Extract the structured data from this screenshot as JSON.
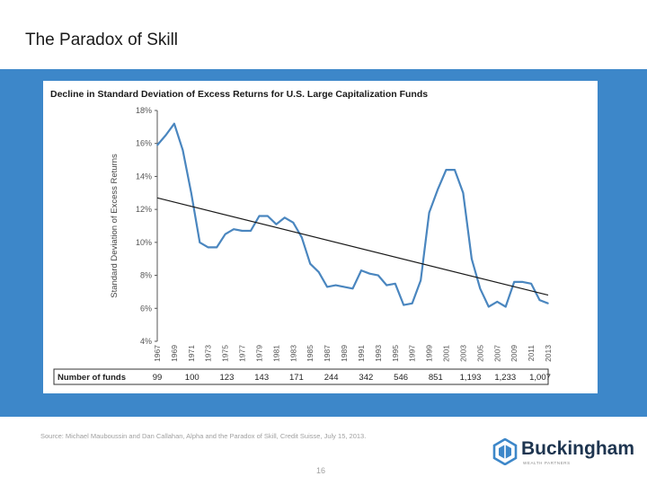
{
  "slide": {
    "title": "The Paradox of Skill",
    "source": "Source: Michael Mauboussin and Dan Callahan, Alpha and the Paradox of Skill, Credit Suisse, July 15, 2013.",
    "page_number": "16"
  },
  "logo": {
    "name": "Buckingham",
    "tagline": "WEALTH PARTNERS"
  },
  "colors": {
    "band": "#3d87c9",
    "series": "#4a86bf",
    "trend": "#1a1a1a"
  },
  "chart_data": {
    "type": "line",
    "title": "Decline in Standard Deviation of Excess Returns for U.S. Large Capitalization Funds",
    "ylabel": "Standard Deviation of Excess Returns",
    "xlabel": "",
    "ylim": [
      4,
      18
    ],
    "yticks": [
      "18%",
      "16%",
      "14%",
      "12%",
      "10%",
      "8%",
      "6%",
      "4%"
    ],
    "xticks": [
      "1967",
      "1969",
      "1971",
      "1973",
      "1975",
      "1977",
      "1979",
      "1981",
      "1983",
      "1985",
      "1987",
      "1989",
      "1991",
      "1993",
      "1995",
      "1997",
      "1999",
      "2001",
      "2003",
      "2005",
      "2007",
      "2009",
      "2011",
      "2013"
    ],
    "series": [
      {
        "values": [
          {
            "x": 1967,
            "y": 15.9
          },
          {
            "x": 1968,
            "y": 16.5
          },
          {
            "x": 1969,
            "y": 17.2
          },
          {
            "x": 1970,
            "y": 15.6
          },
          {
            "x": 1971,
            "y": 13.0
          },
          {
            "x": 1972,
            "y": 10.0
          },
          {
            "x": 1973,
            "y": 9.7
          },
          {
            "x": 1974,
            "y": 9.7
          },
          {
            "x": 1975,
            "y": 10.5
          },
          {
            "x": 1976,
            "y": 10.8
          },
          {
            "x": 1977,
            "y": 10.7
          },
          {
            "x": 1978,
            "y": 10.7
          },
          {
            "x": 1979,
            "y": 11.6
          },
          {
            "x": 1980,
            "y": 11.6
          },
          {
            "x": 1981,
            "y": 11.1
          },
          {
            "x": 1982,
            "y": 11.5
          },
          {
            "x": 1983,
            "y": 11.2
          },
          {
            "x": 1984,
            "y": 10.3
          },
          {
            "x": 1985,
            "y": 8.7
          },
          {
            "x": 1986,
            "y": 8.2
          },
          {
            "x": 1987,
            "y": 7.3
          },
          {
            "x": 1988,
            "y": 7.4
          },
          {
            "x": 1989,
            "y": 7.3
          },
          {
            "x": 1990,
            "y": 7.2
          },
          {
            "x": 1991,
            "y": 8.3
          },
          {
            "x": 1992,
            "y": 8.1
          },
          {
            "x": 1993,
            "y": 8.0
          },
          {
            "x": 1994,
            "y": 7.4
          },
          {
            "x": 1995,
            "y": 7.5
          },
          {
            "x": 1996,
            "y": 6.2
          },
          {
            "x": 1997,
            "y": 6.3
          },
          {
            "x": 1998,
            "y": 7.7
          },
          {
            "x": 1999,
            "y": 11.8
          },
          {
            "x": 2000,
            "y": 13.2
          },
          {
            "x": 2001,
            "y": 14.4
          },
          {
            "x": 2002,
            "y": 14.4
          },
          {
            "x": 2003,
            "y": 13.0
          },
          {
            "x": 2004,
            "y": 9.0
          },
          {
            "x": 2005,
            "y": 7.2
          },
          {
            "x": 2006,
            "y": 6.1
          },
          {
            "x": 2007,
            "y": 6.4
          },
          {
            "x": 2008,
            "y": 6.1
          },
          {
            "x": 2009,
            "y": 7.6
          },
          {
            "x": 2010,
            "y": 7.6
          },
          {
            "x": 2011,
            "y": 7.5
          },
          {
            "x": 2012,
            "y": 6.5
          },
          {
            "x": 2013,
            "y": 6.3
          }
        ]
      }
    ],
    "trendline": {
      "start": {
        "x": 1967,
        "y": 12.7
      },
      "end": {
        "x": 2013,
        "y": 6.8
      }
    },
    "funds_table": {
      "label": "Number of funds",
      "values": [
        "99",
        "100",
        "123",
        "143",
        "171",
        "244",
        "342",
        "546",
        "851",
        "1,193",
        "1,233",
        "1,007"
      ]
    },
    "grid": false
  }
}
